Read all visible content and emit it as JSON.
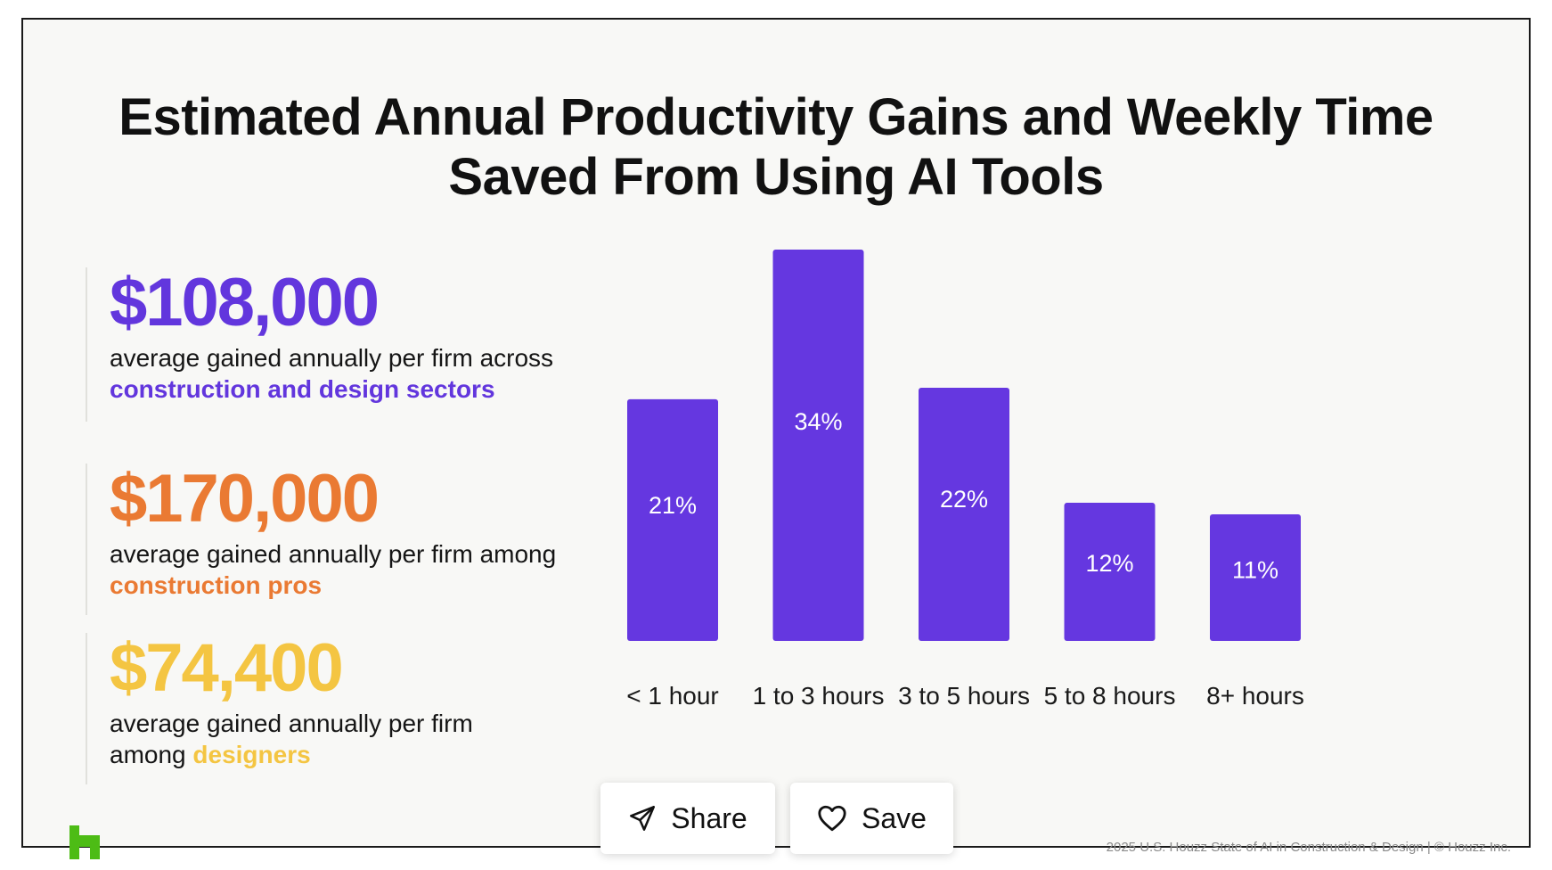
{
  "title_line1": "Estimated Annual Productivity Gains and Weekly Time",
  "title_line2": "Saved From Using AI Tools",
  "stats": [
    {
      "value": "$108,000",
      "line1": "average gained annually per firm across",
      "prefix2": "",
      "highlight": "construction and design sectors",
      "color": "#6236dd"
    },
    {
      "value": "$170,000",
      "line1": "average gained annually per firm among",
      "prefix2": "",
      "highlight": "construction pros",
      "color": "#ea7a33"
    },
    {
      "value": "$74,400",
      "line1": "average gained annually per firm",
      "prefix2": "among ",
      "highlight": "designers",
      "color": "#f4c542"
    }
  ],
  "chart_data": {
    "type": "bar",
    "title": "Estimated Annual Productivity Gains and Weekly Time Saved From Using AI Tools",
    "categories": [
      "< 1 hour",
      "1 to 3 hours",
      "3 to 5 hours",
      "5 to 8 hours",
      "8+ hours"
    ],
    "values": [
      21,
      34,
      22,
      12,
      11
    ],
    "value_labels": [
      "21%",
      "34%",
      "22%",
      "12%",
      "11%"
    ],
    "xlabel": "",
    "ylabel": "",
    "ylim": [
      0,
      34
    ],
    "grid": false,
    "legend": "none",
    "bar_color": "#6537e0"
  },
  "footer": "2025 U.S. Houzz State of AI in Construction & Design | © Houzz Inc.",
  "logo_color": "#4dbc15",
  "buttons": {
    "share_label": "Share",
    "save_label": "Save"
  }
}
